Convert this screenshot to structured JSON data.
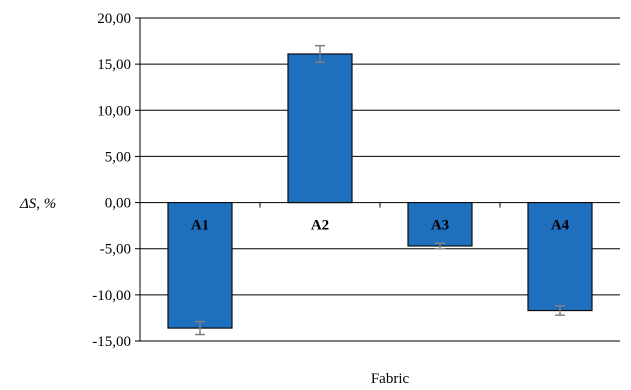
{
  "chart_data": {
    "type": "bar",
    "categories": [
      "A1",
      "A2",
      "A3",
      "A4"
    ],
    "values": [
      -13.6,
      16.1,
      -4.7,
      -11.7
    ],
    "error": [
      0.7,
      0.9,
      0.3,
      0.5
    ],
    "ylim": [
      -15,
      20
    ],
    "yticks": [
      "20,00",
      "15,00",
      "10,00",
      "5,00",
      "0,00",
      "-5,00",
      "-10,00",
      "-15,00"
    ],
    "ytick_values": [
      20,
      15,
      10,
      5,
      0,
      -5,
      -10,
      -15
    ],
    "ylabel": "ΔS, %",
    "xlabel": "Fabric",
    "bar_color": "#1f6fbf",
    "bar_stroke": "#0d0d0d",
    "error_color": "#7f7f7f",
    "grid": true
  }
}
